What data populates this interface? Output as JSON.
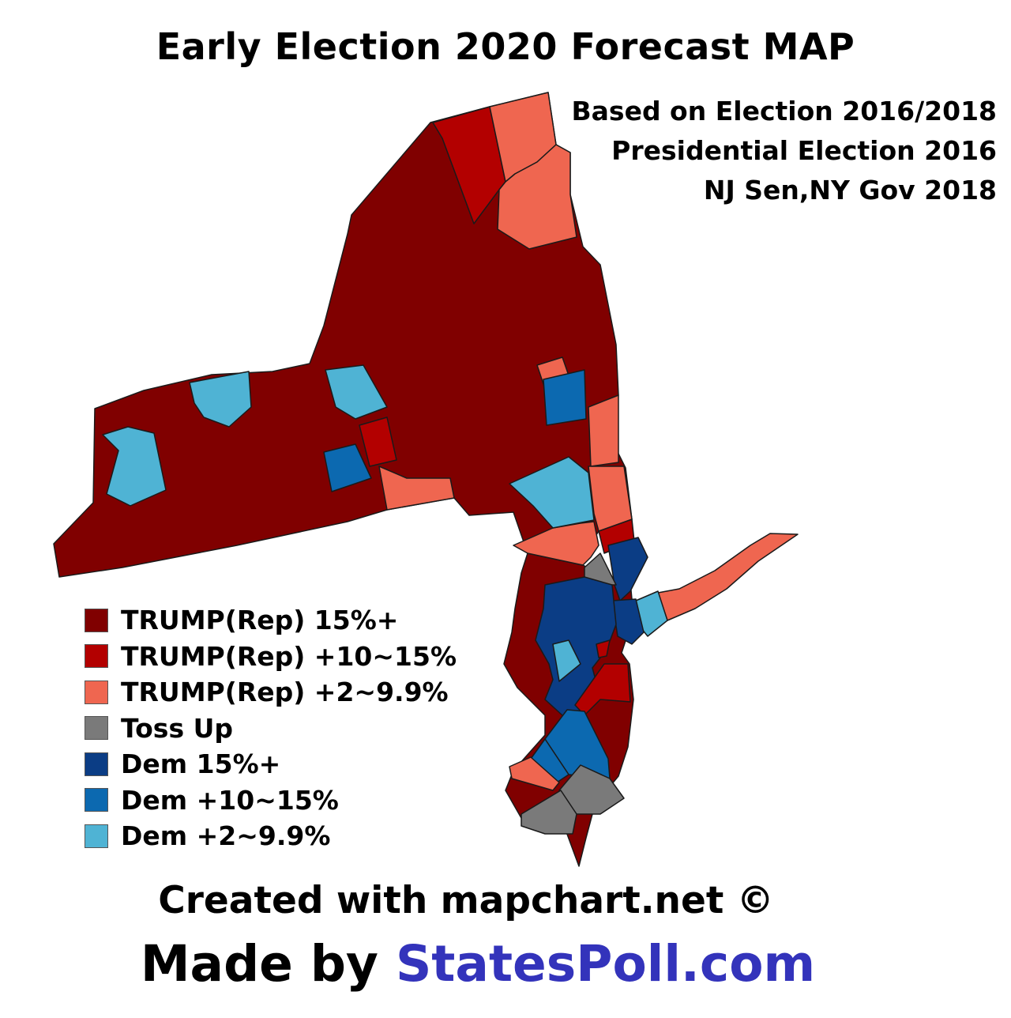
{
  "title": "Early Election 2020 Forecast MAP",
  "subtitle_lines": [
    "Based on Election 2016/2018",
    "Presidential Election 2016",
    "NJ Sen,NY Gov 2018"
  ],
  "legend": [
    {
      "label": "TRUMP(Rep) 15%+",
      "color": "#800000"
    },
    {
      "label": "TRUMP(Rep) +10~15%",
      "color": "#b30000"
    },
    {
      "label": "TRUMP(Rep) +2~9.9%",
      "color": "#ef6650"
    },
    {
      "label": "Toss Up",
      "color": "#7a7a7a"
    },
    {
      "label": "Dem 15%+",
      "color": "#0b3d85"
    },
    {
      "label": "Dem +10~15%",
      "color": "#0c69b0"
    },
    {
      "label": "Dem +2~9.9%",
      "color": "#4fb3d4"
    }
  ],
  "credit": "Created with mapchart.net ©",
  "made_by_prefix": "Made by",
  "made_by_brand": "StatesPoll.com",
  "brand_color": "#3333bb"
}
